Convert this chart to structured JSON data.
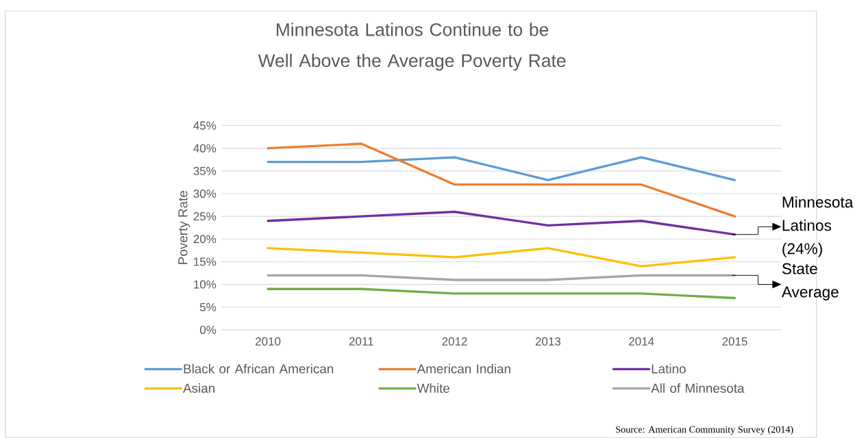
{
  "chart_data": {
    "type": "line",
    "title": "Minnesota Latinos Continue to be Well Above the Average Poverty Rate",
    "ylabel": "Poverty Rate",
    "categories": [
      "2010",
      "2011",
      "2012",
      "2013",
      "2014",
      "2015"
    ],
    "series": [
      {
        "name": "Black or African American",
        "color": "#5b9bd5",
        "values": [
          37,
          37,
          38,
          33,
          38,
          33
        ]
      },
      {
        "name": "American Indian",
        "color": "#ed7d31",
        "values": [
          40,
          41,
          32,
          32,
          32,
          25
        ]
      },
      {
        "name": "Latino",
        "color": "#7030a0",
        "values": [
          24,
          25,
          26,
          23,
          24,
          21
        ]
      },
      {
        "name": "Asian",
        "color": "#ffc000",
        "values": [
          18,
          17,
          16,
          18,
          14,
          16
        ]
      },
      {
        "name": "White",
        "color": "#70ad47",
        "values": [
          9,
          9,
          8,
          8,
          8,
          7
        ]
      },
      {
        "name": "All of Minnesota",
        "color": "#a5a5a5",
        "values": [
          12,
          12,
          11,
          11,
          12,
          12
        ]
      }
    ],
    "ylim": [
      0,
      45
    ],
    "yticks": [
      {
        "value": 0,
        "label": "0%"
      },
      {
        "value": 5,
        "label": "5%"
      },
      {
        "value": 10,
        "label": "10%"
      },
      {
        "value": 15,
        "label": "15%"
      },
      {
        "value": 20,
        "label": "20%"
      },
      {
        "value": 25,
        "label": "25%"
      },
      {
        "value": 30,
        "label": "30%"
      },
      {
        "value": 35,
        "label": "35%"
      },
      {
        "value": 40,
        "label": "40%"
      },
      {
        "value": 45,
        "label": "45%"
      }
    ],
    "grid": "y",
    "legend": "bottom",
    "marker": "none",
    "line_style": "solid",
    "annotations": [
      {
        "text": "Minnesota Latinos (24%)",
        "x": "2015",
        "y": 21
      },
      {
        "text": "State Average",
        "x": "2015",
        "y": 12
      },
      "Source: American Community Survey (2014)"
    ]
  }
}
